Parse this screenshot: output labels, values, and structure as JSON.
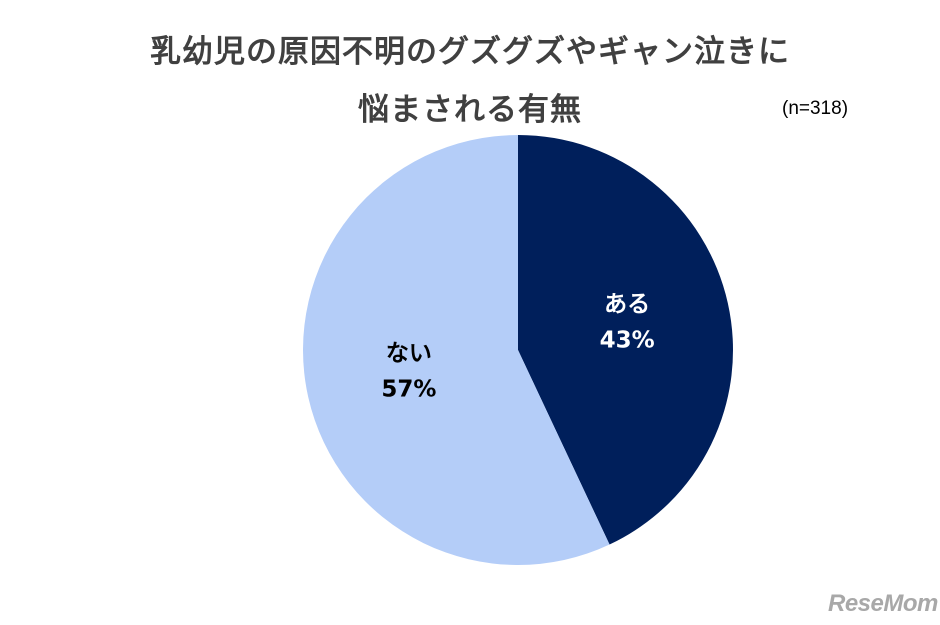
{
  "chart_data": {
    "type": "pie",
    "title_line1": "乳幼児の原因不明のグズグズやギャン泣きに",
    "title_line2": "悩まされる有無",
    "sample_size": "(n=318)",
    "slices": [
      {
        "label": "ある",
        "value": 43,
        "value_label": "43%",
        "color": "#001f5b",
        "text_color": "#ffffff"
      },
      {
        "label": "ない",
        "value": 57,
        "value_label": "57%",
        "color": "#b4cdf8",
        "text_color": "#000000"
      }
    ],
    "start": "12 o'clock",
    "direction": "clockwise"
  },
  "watermark": "ReseMom"
}
